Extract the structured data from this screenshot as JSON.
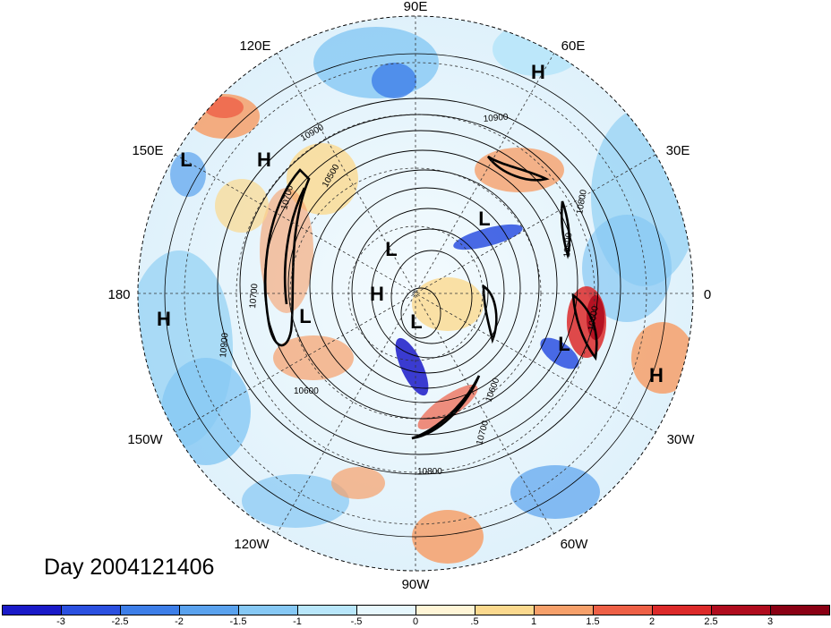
{
  "figure": {
    "day_label": "Day 2004121406"
  },
  "longitude_labels": [
    "90E",
    "60E",
    "30E",
    "0",
    "30W",
    "60W",
    "90W",
    "120W",
    "150W",
    "180",
    "150E",
    "120E"
  ],
  "pressure_centers": [
    "H",
    "L",
    "H",
    "L",
    "H",
    "L",
    "L",
    "H",
    "L",
    "L",
    "H"
  ],
  "contour_labels": [
    "10900",
    "10500",
    "10700",
    "10700",
    "10900",
    "10600",
    "10600",
    "10700",
    "10800",
    "10500",
    "10800",
    "10900",
    "10600"
  ],
  "colorbar": {
    "ticks": [
      "-3",
      "-2.5",
      "-2",
      "-1.5",
      "-1",
      "-.5",
      "0",
      ".5",
      "1",
      "1.5",
      "2",
      "2.5",
      "3"
    ],
    "colors": [
      "#1a1ac8",
      "#2b50e0",
      "#3d7ee8",
      "#5aa2ee",
      "#86c8f4",
      "#b8e6fa",
      "#e6f7fd",
      "#fff5d6",
      "#fbd98e",
      "#f6a06a",
      "#ee6046",
      "#dc2a2a",
      "#b00c1e",
      "#8a0014"
    ]
  }
}
